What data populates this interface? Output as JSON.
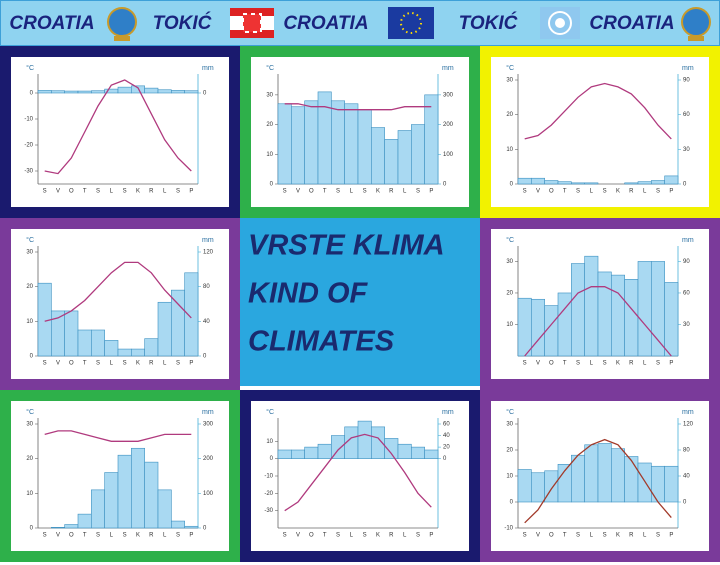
{
  "header": {
    "labels": [
      "CROATIA",
      "TOKIĆ",
      "CROATIA",
      "TOKIĆ",
      "CROATIA"
    ]
  },
  "title": {
    "lines": [
      "VRSTE KLIMA",
      "KIND OF",
      "CLIMATES"
    ]
  },
  "chart_data": [
    {
      "type": "climograph",
      "categories": [
        "S",
        "V",
        "O",
        "T",
        "S",
        "L",
        "S",
        "K",
        "R",
        "L",
        "S",
        "P"
      ],
      "ylabel": "°C",
      "y2label": "mm",
      "ylim": [
        -35,
        5
      ],
      "yticks": [
        -30,
        -20,
        -10,
        0
      ],
      "y2lim": [
        -280,
        40
      ],
      "y2ticks": [
        0
      ],
      "series": [
        {
          "type": "bar",
          "axis": "y2",
          "color": "#a9d9f2",
          "values": [
            8,
            7,
            6,
            6,
            7,
            12,
            18,
            22,
            15,
            10,
            8,
            7
          ]
        },
        {
          "type": "line",
          "color": "#b03a7e",
          "values": [
            -30,
            -31,
            -25,
            -15,
            -5,
            3,
            5,
            2,
            -8,
            -18,
            -25,
            -30
          ]
        }
      ]
    },
    {
      "type": "climograph",
      "categories": [
        "S",
        "V",
        "O",
        "T",
        "S",
        "L",
        "S",
        "K",
        "R",
        "L",
        "S",
        "P"
      ],
      "ylabel": "°C",
      "y2label": "mm",
      "ylim": [
        0,
        35
      ],
      "yticks": [
        0,
        10,
        20,
        30
      ],
      "y2lim": [
        0,
        350
      ],
      "y2ticks": [
        0,
        100,
        200,
        300
      ],
      "series": [
        {
          "type": "bar",
          "axis": "y2",
          "color": "#a9d9f2",
          "values": [
            270,
            260,
            280,
            310,
            280,
            270,
            250,
            190,
            150,
            180,
            200,
            300
          ]
        },
        {
          "type": "line",
          "color": "#b03a7e",
          "values": [
            27,
            27,
            26,
            26,
            25,
            25,
            25,
            25,
            25,
            26,
            26,
            26
          ]
        }
      ]
    },
    {
      "type": "climograph",
      "categories": [
        "S",
        "V",
        "O",
        "T",
        "S",
        "L",
        "S",
        "K",
        "R",
        "L",
        "S",
        "P"
      ],
      "ylabel": "°C",
      "y2label": "mm",
      "ylim": [
        0,
        30
      ],
      "yticks": [
        0,
        10,
        20,
        30
      ],
      "y2lim": [
        0,
        90
      ],
      "y2ticks": [
        0,
        30,
        60,
        90
      ],
      "series": [
        {
          "type": "bar",
          "axis": "y2",
          "color": "#a9d9f2",
          "values": [
            5,
            5,
            3,
            2,
            1,
            1,
            0,
            0,
            1,
            2,
            3,
            7
          ]
        },
        {
          "type": "line",
          "color": "#b03a7e",
          "values": [
            13,
            14,
            17,
            21,
            25,
            28,
            29,
            28,
            26,
            22,
            17,
            13
          ]
        }
      ]
    },
    {
      "type": "climograph",
      "categories": [
        "S",
        "V",
        "O",
        "T",
        "S",
        "L",
        "S",
        "K",
        "R",
        "L",
        "S",
        "P"
      ],
      "ylabel": "°C",
      "y2label": "mm",
      "ylim": [
        0,
        30
      ],
      "yticks": [
        0,
        10,
        20,
        30
      ],
      "y2lim": [
        0,
        120
      ],
      "y2ticks": [
        0,
        40,
        80,
        120
      ],
      "series": [
        {
          "type": "bar",
          "axis": "y2",
          "color": "#a9d9f2",
          "values": [
            84,
            52,
            52,
            30,
            30,
            18,
            8,
            8,
            20,
            62,
            76,
            96
          ]
        },
        {
          "type": "line",
          "color": "#b03a7e",
          "values": [
            10,
            11,
            13,
            16,
            20,
            24,
            27,
            27,
            24,
            19,
            15,
            11
          ]
        }
      ]
    },
    {
      "type": "climograph",
      "categories": [
        "S",
        "V",
        "O",
        "T",
        "S",
        "L",
        "S",
        "K",
        "R",
        "L",
        "S",
        "P"
      ],
      "ylabel": "°C",
      "y2label": "mm",
      "ylim": [
        0,
        33
      ],
      "yticks": [
        10,
        20,
        30
      ],
      "y2lim": [
        0,
        99
      ],
      "y2ticks": [
        30,
        60,
        90
      ],
      "series": [
        {
          "type": "bar",
          "axis": "y2",
          "color": "#a9d9f2",
          "values": [
            55,
            54,
            48,
            60,
            88,
            95,
            80,
            77,
            73,
            90,
            90,
            70
          ]
        },
        {
          "type": "line",
          "color": "#b03a7e",
          "values": [
            0,
            5,
            10,
            15,
            20,
            22,
            22,
            20,
            15,
            10,
            5,
            0
          ]
        }
      ]
    },
    {
      "type": "climograph",
      "categories": [
        "S",
        "V",
        "O",
        "T",
        "S",
        "L",
        "S",
        "K",
        "R",
        "L",
        "S",
        "P"
      ],
      "ylabel": "°C",
      "y2label": "mm",
      "ylim": [
        0,
        30
      ],
      "yticks": [
        0,
        10,
        20,
        30
      ],
      "y2lim": [
        0,
        300
      ],
      "y2ticks": [
        0,
        100,
        200,
        300
      ],
      "series": [
        {
          "type": "bar",
          "axis": "y2",
          "color": "#a9d9f2",
          "values": [
            0,
            2,
            10,
            40,
            110,
            160,
            210,
            230,
            190,
            110,
            20,
            5
          ]
        },
        {
          "type": "line",
          "color": "#b03a7e",
          "values": [
            27,
            28,
            28,
            27,
            26,
            25,
            25,
            25,
            26,
            27,
            27,
            27
          ]
        }
      ]
    },
    {
      "type": "climograph",
      "categories": [
        "S",
        "V",
        "O",
        "T",
        "S",
        "L",
        "S",
        "K",
        "R",
        "L",
        "S",
        "P"
      ],
      "ylabel": "°C",
      "y2label": "mm",
      "ylim": [
        -40,
        20
      ],
      "yticks": [
        -30,
        -20,
        -10,
        0,
        10
      ],
      "y2lim": [
        -120,
        60
      ],
      "y2ticks": [
        0,
        20,
        40,
        60
      ],
      "series": [
        {
          "type": "bar",
          "axis": "y2",
          "color": "#a9d9f2",
          "values": [
            15,
            15,
            20,
            25,
            40,
            55,
            65,
            55,
            35,
            25,
            20,
            15
          ]
        },
        {
          "type": "line",
          "color": "#b03a7e",
          "values": [
            -30,
            -25,
            -15,
            -5,
            5,
            12,
            14,
            12,
            3,
            -8,
            -20,
            -28
          ]
        }
      ]
    },
    {
      "type": "climograph",
      "categories": [
        "S",
        "V",
        "O",
        "T",
        "S",
        "L",
        "S",
        "K",
        "R",
        "L",
        "S",
        "P"
      ],
      "ylabel": "°C",
      "y2label": "mm",
      "ylim": [
        -10,
        30
      ],
      "yticks": [
        -10,
        0,
        10,
        20,
        30
      ],
      "y2lim": [
        -40,
        120
      ],
      "y2ticks": [
        0,
        40,
        80,
        120
      ],
      "series": [
        {
          "type": "bar",
          "axis": "y2",
          "color": "#a9d9f2",
          "values": [
            50,
            45,
            48,
            58,
            72,
            88,
            90,
            82,
            70,
            60,
            55,
            55
          ]
        },
        {
          "type": "line",
          "color": "#a23a2a",
          "values": [
            -8,
            -3,
            5,
            12,
            18,
            22,
            24,
            22,
            16,
            8,
            0,
            -6
          ]
        }
      ]
    }
  ]
}
